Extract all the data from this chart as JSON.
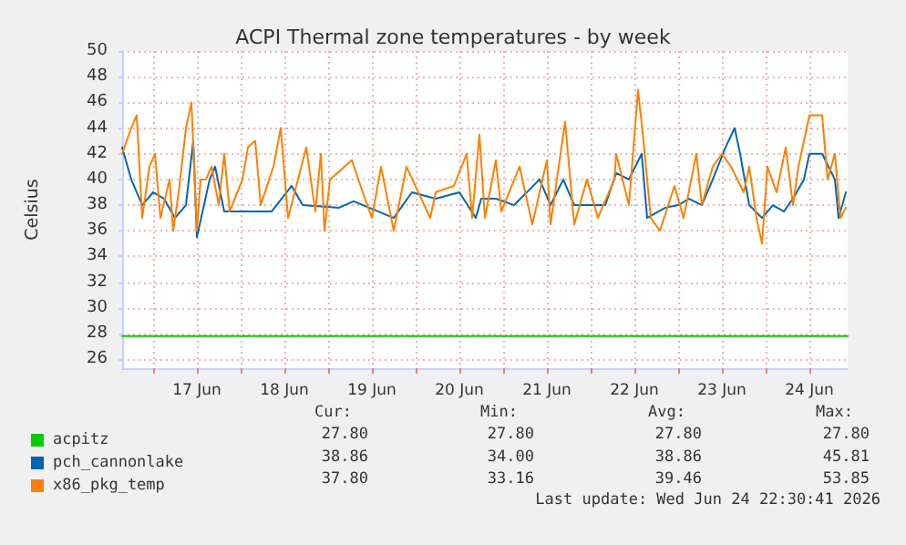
{
  "chart_data": {
    "type": "line",
    "title": "ACPI Thermal zone temperatures - by week",
    "ylabel": "Celsius",
    "xlim": [
      "2026-06-16T15:30",
      "2026-06-24T22:30"
    ],
    "xticks": [
      {
        "value": "2026-06-17T00:00",
        "label": null
      },
      {
        "value": "2026-06-17T12:00",
        "label": "17 Jun"
      },
      {
        "value": "2026-06-18T00:00",
        "label": null
      },
      {
        "value": "2026-06-18T12:00",
        "label": "18 Jun"
      },
      {
        "value": "2026-06-19T00:00",
        "label": null
      },
      {
        "value": "2026-06-19T12:00",
        "label": "19 Jun"
      },
      {
        "value": "2026-06-20T00:00",
        "label": null
      },
      {
        "value": "2026-06-20T12:00",
        "label": "20 Jun"
      },
      {
        "value": "2026-06-21T00:00",
        "label": null
      },
      {
        "value": "2026-06-21T12:00",
        "label": "21 Jun"
      },
      {
        "value": "2026-06-22T00:00",
        "label": null
      },
      {
        "value": "2026-06-22T12:00",
        "label": "22 Jun"
      },
      {
        "value": "2026-06-23T00:00",
        "label": null
      },
      {
        "value": "2026-06-23T12:00",
        "label": "23 Jun"
      },
      {
        "value": "2026-06-24T00:00",
        "label": null
      },
      {
        "value": "2026-06-24T12:00",
        "label": "24 Jun"
      }
    ],
    "ylim": [
      25.3,
      50
    ],
    "yticks": [
      26,
      28,
      30,
      32,
      34,
      36,
      38,
      40,
      42,
      44,
      46,
      48,
      50
    ],
    "grid": true,
    "legend": "bottom left",
    "marker": "none",
    "line_style": "solid",
    "series": [
      {
        "name": "acpitz",
        "color": "#00cc00",
        "x": [
          "2026-06-16T15:30",
          "2026-06-24T22:30"
        ],
        "values": [
          27.8,
          27.8
        ]
      },
      {
        "name": "pch_cannonlake",
        "color": "#0066b3",
        "x": [
          "2026-06-16T15:30",
          "2026-06-16T18:00",
          "2026-06-16T21:00",
          "2026-06-17T00:00",
          "2026-06-17T03:00",
          "2026-06-17T06:00",
          "2026-06-17T09:00",
          "2026-06-17T11:00",
          "2026-06-17T12:00",
          "2026-06-17T15:30",
          "2026-06-17T17:00",
          "2026-06-17T19:30",
          "2026-06-18T08:30",
          "2026-06-18T14:00",
          "2026-06-18T17:00",
          "2026-06-19T03:00",
          "2026-06-19T07:00",
          "2026-06-19T18:00",
          "2026-06-19T23:00",
          "2026-06-20T05:30",
          "2026-06-20T12:00",
          "2026-06-20T16:30",
          "2026-06-20T18:00",
          "2026-06-20T22:00",
          "2026-06-21T03:00",
          "2026-06-21T10:00",
          "2026-06-21T13:00",
          "2026-06-21T16:30",
          "2026-06-21T19:30",
          "2026-06-22T00:30",
          "2026-06-22T04:00",
          "2026-06-22T07:00",
          "2026-06-22T10:30",
          "2026-06-22T14:00",
          "2026-06-22T15:30",
          "2026-06-22T20:30",
          "2026-06-23T00:00",
          "2026-06-23T03:00",
          "2026-06-23T06:30",
          "2026-06-23T09:30",
          "2026-06-23T13:00",
          "2026-06-23T15:30",
          "2026-06-23T17:00",
          "2026-06-23T19:30",
          "2026-06-23T23:00",
          "2026-06-24T02:00",
          "2026-06-24T05:00",
          "2026-06-24T07:30",
          "2026-06-24T10:30",
          "2026-06-24T12:00",
          "2026-06-24T15:30",
          "2026-06-24T19:00",
          "2026-06-24T20:00",
          "2026-06-24T22:00"
        ],
        "values": [
          42.5,
          40,
          38,
          39,
          38.5,
          37,
          38,
          43,
          35.5,
          40,
          41,
          37.5,
          37.5,
          39.5,
          38,
          37.8,
          38.3,
          37,
          39,
          38.5,
          39,
          37,
          38.5,
          38.5,
          38,
          40,
          38,
          40,
          38,
          38,
          38,
          40.5,
          40,
          42,
          37,
          37.8,
          38,
          38.5,
          38,
          40,
          42.5,
          44,
          42,
          38,
          37,
          38,
          37.5,
          38.5,
          40,
          42,
          42,
          40,
          37,
          39
        ]
      },
      {
        "name": "x86_pkg_temp",
        "color": "#ff8000",
        "x": [
          "2026-06-16T15:30",
          "2026-06-16T18:00",
          "2026-06-16T19:30",
          "2026-06-16T21:00",
          "2026-06-16T23:00",
          "2026-06-17T00:30",
          "2026-06-17T02:00",
          "2026-06-17T04:30",
          "2026-06-17T05:30",
          "2026-06-17T07:00",
          "2026-06-17T09:00",
          "2026-06-17T10:30",
          "2026-06-17T12:00",
          "2026-06-17T13:00",
          "2026-06-17T14:30",
          "2026-06-17T16:00",
          "2026-06-17T18:00",
          "2026-06-17T19:30",
          "2026-06-17T21:00",
          "2026-06-18T00:30",
          "2026-06-18T02:00",
          "2026-06-18T04:00",
          "2026-06-18T05:30",
          "2026-06-18T09:00",
          "2026-06-18T11:00",
          "2026-06-18T13:00",
          "2026-06-18T18:00",
          "2026-06-18T20:30",
          "2026-06-18T22:00",
          "2026-06-18T23:00",
          "2026-06-19T00:30",
          "2026-06-19T06:30",
          "2026-06-19T09:30",
          "2026-06-19T12:00",
          "2026-06-19T14:30",
          "2026-06-19T18:00",
          "2026-06-19T21:30",
          "2026-06-20T04:00",
          "2026-06-20T05:30",
          "2026-06-20T10:30",
          "2026-06-20T14:00",
          "2026-06-20T15:30",
          "2026-06-20T17:30",
          "2026-06-20T19:00",
          "2026-06-20T22:00",
          "2026-06-20T23:30",
          "2026-06-21T04:30",
          "2026-06-21T08:00",
          "2026-06-21T12:00",
          "2026-06-21T13:00",
          "2026-06-21T17:00",
          "2026-06-21T19:30",
          "2026-06-21T23:00",
          "2026-06-22T02:00",
          "2026-06-22T06:30",
          "2026-06-22T07:00",
          "2026-06-22T10:30",
          "2026-06-22T13:00",
          "2026-06-22T14:30",
          "2026-06-22T16:30",
          "2026-06-22T19:00",
          "2026-06-22T23:00",
          "2026-06-23T01:30",
          "2026-06-23T05:00",
          "2026-06-23T06:30",
          "2026-06-23T09:30",
          "2026-06-23T12:00",
          "2026-06-23T14:30",
          "2026-06-23T18:00",
          "2026-06-23T19:30",
          "2026-06-23T21:30",
          "2026-06-23T23:00",
          "2026-06-24T00:30",
          "2026-06-24T03:00",
          "2026-06-24T05:30",
          "2026-06-24T07:30",
          "2026-06-24T09:00",
          "2026-06-24T12:00",
          "2026-06-24T15:30",
          "2026-06-24T17:00",
          "2026-06-24T19:00",
          "2026-06-24T20:30",
          "2026-06-24T22:00"
        ],
        "values": [
          42,
          44,
          45,
          37,
          41,
          42,
          37,
          40,
          36,
          39,
          44,
          46,
          36,
          40,
          40,
          41,
          38,
          42,
          37.5,
          40,
          42.5,
          43,
          38,
          41,
          44,
          37,
          42.5,
          37.5,
          42,
          36,
          40,
          41.5,
          39,
          37,
          41,
          36,
          41,
          37,
          39,
          39.5,
          42,
          37,
          43.5,
          37,
          41.5,
          37.5,
          41,
          36.5,
          41.5,
          36.5,
          44.5,
          36.5,
          40,
          37,
          40,
          42,
          38,
          47,
          43,
          37,
          36,
          39.5,
          37,
          42,
          38,
          41,
          42,
          41,
          39,
          41,
          37,
          35,
          41,
          39,
          42.5,
          38,
          41,
          45,
          45,
          40,
          42,
          37,
          37.8
        ]
      }
    ],
    "annotations": [
      "Cur:",
      "Min:",
      "Avg:",
      "Max:",
      "27.80",
      "27.80",
      "27.80",
      "27.80",
      "38.86",
      "34.00",
      "38.86",
      "45.81",
      "37.80",
      "33.16",
      "39.46",
      "53.85",
      "Last update: Wed Jun 24 22:30:41 2026"
    ]
  }
}
